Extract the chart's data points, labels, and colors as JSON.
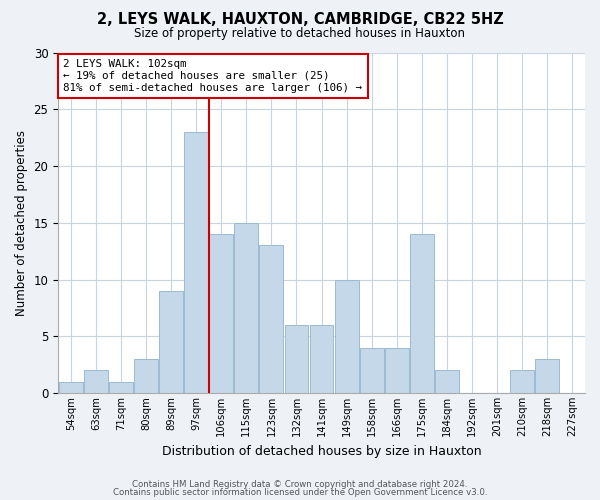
{
  "title": "2, LEYS WALK, HAUXTON, CAMBRIDGE, CB22 5HZ",
  "subtitle": "Size of property relative to detached houses in Hauxton",
  "xlabel": "Distribution of detached houses by size in Hauxton",
  "ylabel": "Number of detached properties",
  "bar_color": "#c5d8ea",
  "bar_edgecolor": "#9bbbd4",
  "bin_labels": [
    "54sqm",
    "63sqm",
    "71sqm",
    "80sqm",
    "89sqm",
    "97sqm",
    "106sqm",
    "115sqm",
    "123sqm",
    "132sqm",
    "141sqm",
    "149sqm",
    "158sqm",
    "166sqm",
    "175sqm",
    "184sqm",
    "192sqm",
    "201sqm",
    "210sqm",
    "218sqm",
    "227sqm"
  ],
  "counts": [
    1,
    2,
    1,
    3,
    9,
    23,
    14,
    15,
    13,
    6,
    6,
    10,
    4,
    4,
    14,
    2,
    0,
    0,
    2,
    3,
    0
  ],
  "vline_index": 6,
  "vline_color": "#cc0000",
  "annotation_text": "2 LEYS WALK: 102sqm\n← 19% of detached houses are smaller (25)\n81% of semi-detached houses are larger (106) →",
  "annotation_box_edgecolor": "#cc0000",
  "annotation_box_facecolor": "white",
  "ylim": [
    0,
    30
  ],
  "yticks": [
    0,
    5,
    10,
    15,
    20,
    25,
    30
  ],
  "footer_line1": "Contains HM Land Registry data © Crown copyright and database right 2024.",
  "footer_line2": "Contains public sector information licensed under the Open Government Licence v3.0.",
  "background_color": "#eef2f7",
  "plot_background_color": "white",
  "grid_color": "#c8d4e0"
}
